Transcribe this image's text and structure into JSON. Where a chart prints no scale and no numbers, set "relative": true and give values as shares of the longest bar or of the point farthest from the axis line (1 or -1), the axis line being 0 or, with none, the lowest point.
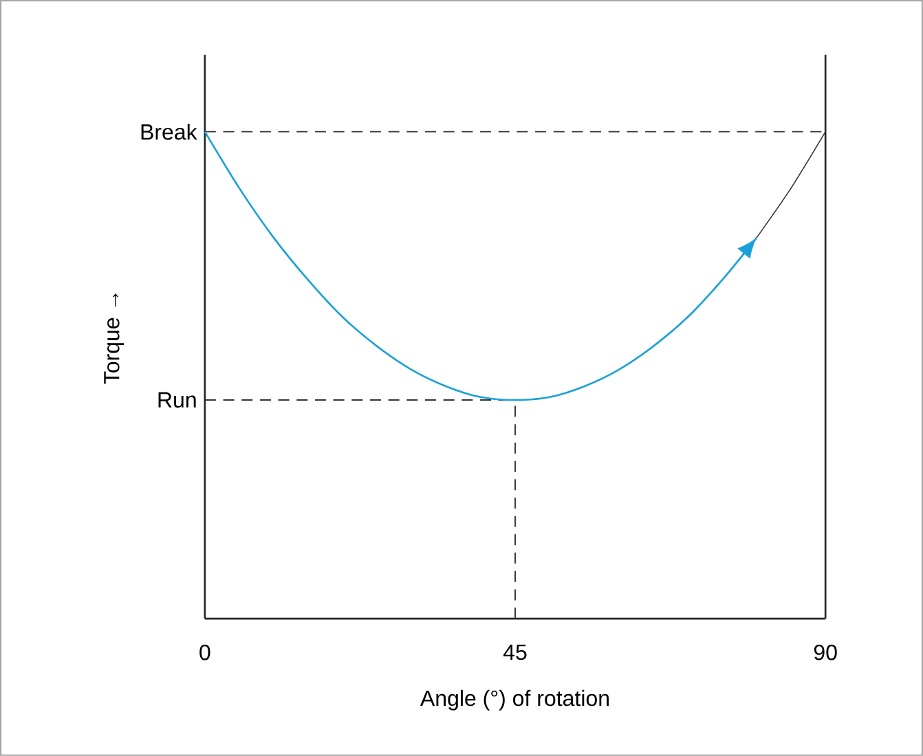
{
  "chart_data": {
    "type": "line",
    "relative": true,
    "xlabel": "Angle (°) of rotation",
    "ylabel": "Torque →",
    "xlim": [
      0,
      90
    ],
    "xticks": [
      0,
      45,
      90
    ],
    "line_style": "solid",
    "series": [
      {
        "color": "#1ba0d8",
        "x": [
          0,
          5,
          10,
          15,
          20,
          25,
          30,
          35,
          40,
          45,
          50,
          55,
          60,
          65,
          70,
          75,
          80
        ],
        "values": [
          1,
          0.884,
          0.782,
          0.695,
          0.619,
          0.559,
          0.511,
          0.477,
          0.455,
          0.449,
          0.455,
          0.477,
          0.511,
          0.559,
          0.619,
          0.695,
          0.782
        ]
      },
      {
        "color": "#333333",
        "x": [
          80,
          85,
          90
        ],
        "values": [
          0.782,
          0.884,
          1
        ]
      }
    ],
    "ref_lines": [
      {
        "axis": "y",
        "value": 1,
        "label": "Break",
        "line_style": "dashed"
      },
      {
        "axis": "y",
        "value": 0.449,
        "label": "Run",
        "line_style": "dashed"
      },
      {
        "axis": "x",
        "value": 45,
        "line_style": "dashed"
      }
    ]
  }
}
